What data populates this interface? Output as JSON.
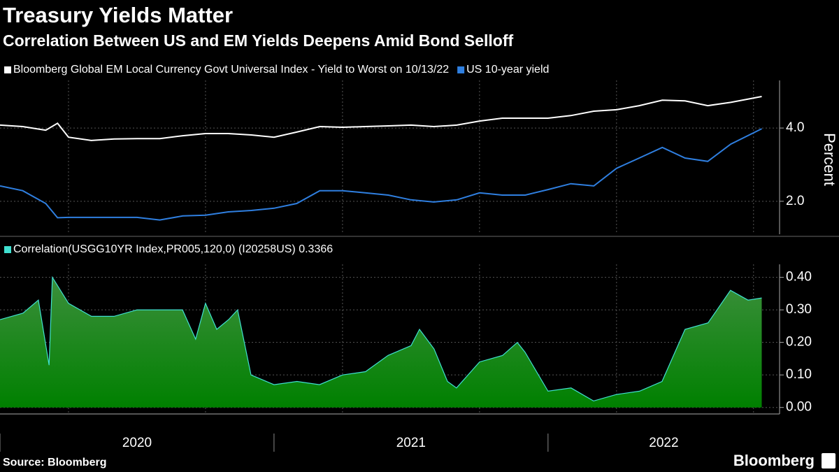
{
  "chart_data": [
    {
      "type": "line",
      "title": "Treasury Yields Matter",
      "subtitle": "Correlation Between US and EM Yields Deepens Amid Bond Selloff",
      "y_label": "Percent",
      "x": [
        2020.0,
        2020.083,
        2020.167,
        2020.21,
        2020.25,
        2020.333,
        2020.417,
        2020.5,
        2020.583,
        2020.667,
        2020.75,
        2020.833,
        2020.917,
        2021.0,
        2021.083,
        2021.167,
        2021.25,
        2021.333,
        2021.417,
        2021.5,
        2021.583,
        2021.667,
        2021.75,
        2021.833,
        2021.917,
        2022.0,
        2022.083,
        2022.167,
        2022.25,
        2022.333,
        2022.417,
        2022.5,
        2022.583,
        2022.667,
        2022.78
      ],
      "series": [
        {
          "name": "Bloomberg Global EM Local Currency Govt Universal Index - Yield to Worst on 10/13/22",
          "color": "#ffffff",
          "values": [
            4.08,
            4.04,
            3.94,
            4.13,
            3.75,
            3.66,
            3.7,
            3.71,
            3.71,
            3.79,
            3.85,
            3.85,
            3.81,
            3.75,
            3.89,
            4.04,
            4.02,
            4.04,
            4.06,
            4.08,
            4.04,
            4.08,
            4.19,
            4.27,
            4.27,
            4.27,
            4.34,
            4.46,
            4.5,
            4.61,
            4.76,
            4.74,
            4.61,
            4.7,
            4.86
          ]
        },
        {
          "name": "US 10-year yield",
          "color": "#2f7fe0",
          "values": [
            2.42,
            2.29,
            1.94,
            1.55,
            1.56,
            1.56,
            1.56,
            1.56,
            1.49,
            1.6,
            1.62,
            1.71,
            1.75,
            1.81,
            1.94,
            2.29,
            2.29,
            2.23,
            2.17,
            2.04,
            1.98,
            2.04,
            2.23,
            2.17,
            2.17,
            2.32,
            2.48,
            2.42,
            2.9,
            3.18,
            3.47,
            3.18,
            3.09,
            3.56,
            3.98
          ]
        }
      ],
      "xlim": [
        2020.0,
        2022.845
      ],
      "xgrid": [
        2020.25,
        2020.75,
        2021.25,
        2021.75,
        2022.25,
        2022.75
      ],
      "ylim": [
        1.1,
        5.3
      ],
      "yticks": [
        {
          "value": 2,
          "label": "2.0"
        },
        {
          "value": 4,
          "label": "4.0"
        }
      ],
      "grid": true
    },
    {
      "type": "area",
      "series": [
        {
          "name": "Correlation(USGG10YR Index,PR005,120,0) (I20258US) 0.3366",
          "color": "#40e0d0",
          "x": [
            2020.0,
            2020.084,
            2020.14,
            2020.179,
            2020.191,
            2020.25,
            2020.334,
            2020.416,
            2020.5,
            2020.584,
            2020.666,
            2020.714,
            2020.75,
            2020.791,
            2020.834,
            2020.867,
            2020.916,
            2021.0,
            2021.084,
            2021.166,
            2021.25,
            2021.334,
            2021.416,
            2021.5,
            2021.531,
            2021.584,
            2021.633,
            2021.666,
            2021.75,
            2021.834,
            2021.888,
            2021.916,
            2022.0,
            2022.084,
            2022.166,
            2022.25,
            2022.334,
            2022.416,
            2022.5,
            2022.584,
            2022.666,
            2022.73,
            2022.78
          ],
          "values": [
            0.27,
            0.29,
            0.33,
            0.13,
            0.4,
            0.32,
            0.28,
            0.28,
            0.3,
            0.3,
            0.3,
            0.21,
            0.32,
            0.24,
            0.27,
            0.3,
            0.1,
            0.07,
            0.08,
            0.07,
            0.1,
            0.11,
            0.16,
            0.19,
            0.24,
            0.18,
            0.08,
            0.06,
            0.14,
            0.16,
            0.2,
            0.17,
            0.05,
            0.06,
            0.02,
            0.04,
            0.05,
            0.08,
            0.24,
            0.26,
            0.36,
            0.33,
            0.3366
          ]
        }
      ],
      "xlim": [
        2020.0,
        2022.845
      ],
      "xgrid": [
        2020.25,
        2020.75,
        2021.25,
        2021.75,
        2022.25,
        2022.75
      ],
      "xticks": [
        2020,
        2021,
        2022
      ],
      "ylim": [
        -0.02,
        0.44
      ],
      "yticks": [
        {
          "value": 0,
          "label": "0.00"
        },
        {
          "value": 0.1,
          "label": "0.10"
        },
        {
          "value": 0.2,
          "label": "0.20"
        },
        {
          "value": 0.3,
          "label": "0.30"
        },
        {
          "value": 0.4,
          "label": "0.40"
        }
      ],
      "grid": true,
      "source": "Source: Bloomberg",
      "logo": "Bloomberg"
    }
  ]
}
